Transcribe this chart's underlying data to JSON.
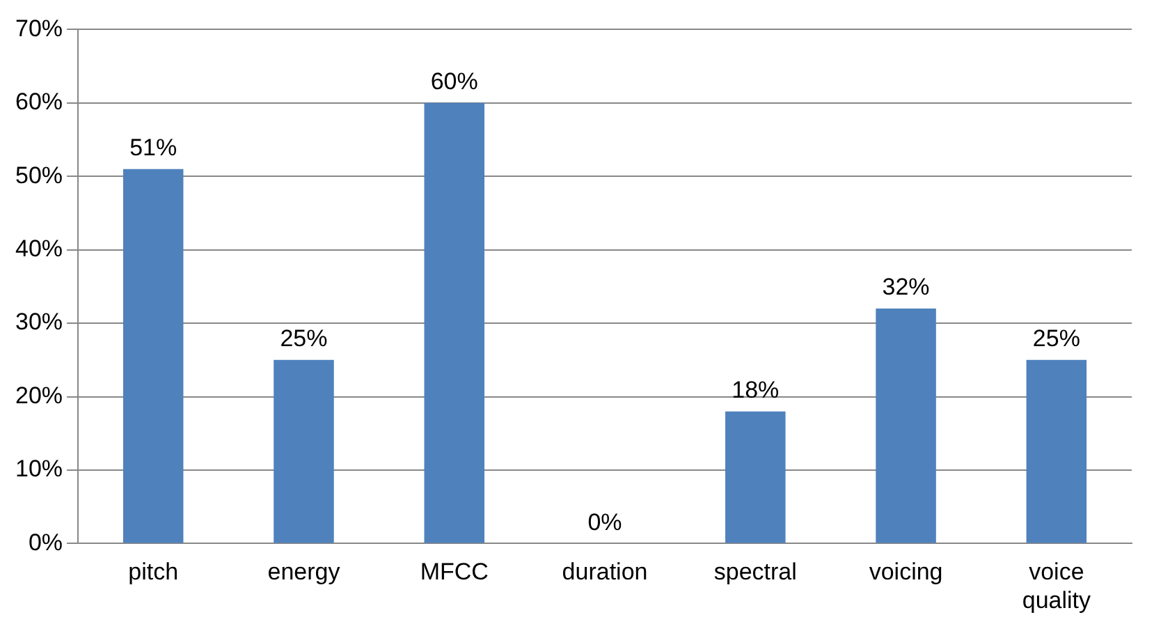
{
  "chart_data": {
    "type": "bar",
    "categories": [
      "pitch",
      "energy",
      "MFCC",
      "duration",
      "spectral",
      "voicing",
      "voice quality"
    ],
    "values": [
      51,
      25,
      60,
      0,
      18,
      32,
      25
    ],
    "value_labels": [
      "51%",
      "25%",
      "60%",
      "0%",
      "18%",
      "32%",
      "25%"
    ],
    "color": "#4f81bd",
    "ylim": [
      0,
      70
    ],
    "yticks": [
      {
        "value": 0,
        "label": "0%"
      },
      {
        "value": 10,
        "label": "10%"
      },
      {
        "value": 20,
        "label": "20%"
      },
      {
        "value": 30,
        "label": "30%"
      },
      {
        "value": 40,
        "label": "40%"
      },
      {
        "value": 50,
        "label": "50%"
      },
      {
        "value": 60,
        "label": "60%"
      },
      {
        "value": 70,
        "label": "70%"
      }
    ],
    "grid": "y"
  }
}
